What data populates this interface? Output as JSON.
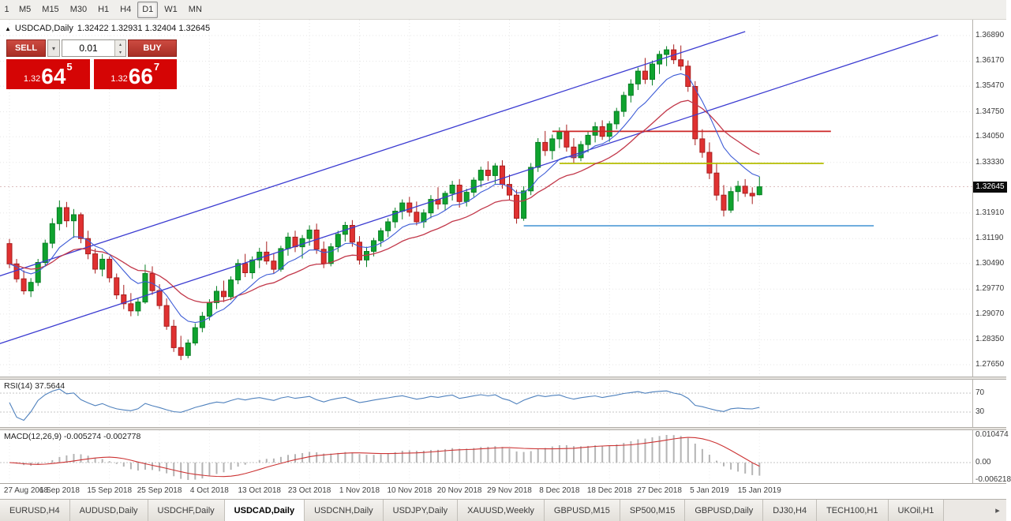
{
  "toolbar": {
    "timeframes": [
      {
        "label": "1"
      },
      {
        "label": "M5"
      },
      {
        "label": "M15"
      },
      {
        "label": "M30"
      },
      {
        "label": "H1"
      },
      {
        "label": "H4"
      },
      {
        "label": "D1",
        "active": true
      },
      {
        "label": "W1"
      },
      {
        "label": "MN"
      }
    ]
  },
  "chart_header": {
    "marker": "▲",
    "symbol": "USDCAD,Daily",
    "ohlc": "1.32422 1.32931 1.32404 1.32645"
  },
  "trade_panel": {
    "sell_label": "SELL",
    "buy_label": "BUY",
    "volume": "0.01",
    "sell_price": {
      "prefix": "1.32",
      "big": "64",
      "sup": "5"
    },
    "buy_price": {
      "prefix": "1.32",
      "big": "66",
      "sup": "7"
    }
  },
  "icons": {
    "dropdown": "▾",
    "spin_up": "▴",
    "spin_down": "▾",
    "tab_scroll_right": "▸"
  },
  "price_axis": {
    "labels": [
      "1.36890",
      "1.36170",
      "1.35470",
      "1.34750",
      "1.34050",
      "1.33330",
      "1.31910",
      "1.31190",
      "1.30490",
      "1.29770",
      "1.29070",
      "1.28350",
      "1.27650"
    ],
    "current": "1.32645"
  },
  "rsi_panel": {
    "label": "RSI(14) 37.5644",
    "axis_labels": [
      "70",
      "30"
    ]
  },
  "macd_panel": {
    "label": "MACD(12,26,9) -0.005274 -0.002778",
    "axis_labels": [
      "0.010474",
      "0.00",
      "-0.006218"
    ]
  },
  "tabs": {
    "items": [
      {
        "label": "EURUSD,H4"
      },
      {
        "label": "AUDUSD,Daily"
      },
      {
        "label": "USDCHF,Daily"
      },
      {
        "label": "USDCAD,Daily",
        "active": true
      },
      {
        "label": "USDCNH,Daily"
      },
      {
        "label": "USDJPY,Daily"
      },
      {
        "label": "XAUUSD,Weekly"
      },
      {
        "label": "GBPUSD,M15"
      },
      {
        "label": "SP500,M15"
      },
      {
        "label": "GBPUSD,Daily"
      },
      {
        "label": "DJ30,H4"
      },
      {
        "label": "TECH100,H1"
      },
      {
        "label": "UKOil,H1"
      }
    ]
  },
  "chart_data": {
    "type": "candlestick",
    "symbol": "USDCAD",
    "timeframe": "Daily",
    "y_range": [
      1.2765,
      1.3689
    ],
    "bars_per_label": 7,
    "dates": [
      "27 Aug 2018",
      "6 Sep 2018",
      "15 Sep 2018",
      "25 Sep 2018",
      "4 Oct 2018",
      "13 Oct 2018",
      "23 Oct 2018",
      "1 Nov 2018",
      "10 Nov 2018",
      "20 Nov 2018",
      "29 Nov 2018",
      "8 Dec 2018",
      "18 Dec 2018",
      "27 Dec 2018",
      "5 Jan 2019",
      "15 Jan 2019"
    ],
    "candles": [
      [
        1.3105,
        1.3118,
        1.3036,
        1.3048
      ],
      [
        1.3048,
        1.3062,
        1.2996,
        1.3006
      ],
      [
        1.3006,
        1.303,
        1.2962,
        1.2972
      ],
      [
        1.2972,
        1.3008,
        1.2955,
        1.2996
      ],
      [
        1.2996,
        1.3062,
        1.2986,
        1.3052
      ],
      [
        1.3052,
        1.3116,
        1.3041,
        1.3106
      ],
      [
        1.3106,
        1.3176,
        1.3092,
        1.3161
      ],
      [
        1.3161,
        1.3226,
        1.3142,
        1.3206
      ],
      [
        1.3206,
        1.3222,
        1.3151,
        1.3169
      ],
      [
        1.3169,
        1.3202,
        1.3121,
        1.3186
      ],
      [
        1.3186,
        1.3192,
        1.3106,
        1.3119
      ],
      [
        1.3119,
        1.3141,
        1.3061,
        1.3076
      ],
      [
        1.3076,
        1.3091,
        1.3021,
        1.3033
      ],
      [
        1.3033,
        1.3076,
        1.3013,
        1.3061
      ],
      [
        1.3061,
        1.3069,
        1.2996,
        1.3009
      ],
      [
        1.3009,
        1.3021,
        1.2949,
        1.2961
      ],
      [
        1.2961,
        1.2989,
        1.2921,
        1.2936
      ],
      [
        1.2936,
        1.2966,
        1.2901,
        1.2916
      ],
      [
        1.2916,
        1.2951,
        1.2902,
        1.2941
      ],
      [
        1.2941,
        1.3046,
        1.2936,
        1.3021
      ],
      [
        1.3021,
        1.3041,
        1.2961,
        1.2973
      ],
      [
        1.2973,
        1.2991,
        1.2921,
        1.2931
      ],
      [
        1.2931,
        1.2951,
        1.2863,
        1.2873
      ],
      [
        1.2873,
        1.2891,
        1.2801,
        1.2813
      ],
      [
        1.2813,
        1.2846,
        1.2778,
        1.2791
      ],
      [
        1.2791,
        1.2836,
        1.2783,
        1.2826
      ],
      [
        1.2826,
        1.2881,
        1.2819,
        1.2869
      ],
      [
        1.2869,
        1.2913,
        1.2856,
        1.2901
      ],
      [
        1.2901,
        1.2949,
        1.2889,
        1.2939
      ],
      [
        1.2939,
        1.2986,
        1.2921,
        1.2971
      ],
      [
        1.2971,
        1.3001,
        1.2941,
        1.2956
      ],
      [
        1.2956,
        1.3013,
        1.2946,
        1.3003
      ],
      [
        1.3003,
        1.3061,
        1.2991,
        1.3049
      ],
      [
        1.3049,
        1.3076,
        1.3011,
        1.3023
      ],
      [
        1.3023,
        1.3069,
        1.3006,
        1.3059
      ],
      [
        1.3059,
        1.3093,
        1.3036,
        1.3081
      ],
      [
        1.3081,
        1.3111,
        1.3046,
        1.3056
      ],
      [
        1.3056,
        1.3076,
        1.3021,
        1.3033
      ],
      [
        1.3033,
        1.3099,
        1.3026,
        1.3091
      ],
      [
        1.3091,
        1.3136,
        1.3071,
        1.3123
      ],
      [
        1.3123,
        1.3141,
        1.3081,
        1.3096
      ],
      [
        1.3096,
        1.3129,
        1.3063,
        1.3119
      ],
      [
        1.3119,
        1.3156,
        1.3099,
        1.3143
      ],
      [
        1.3143,
        1.3161,
        1.3076,
        1.3089
      ],
      [
        1.3089,
        1.3111,
        1.3036,
        1.3049
      ],
      [
        1.3049,
        1.3106,
        1.3041,
        1.3096
      ],
      [
        1.3096,
        1.3141,
        1.3081,
        1.3131
      ],
      [
        1.3131,
        1.3166,
        1.3111,
        1.3156
      ],
      [
        1.3156,
        1.3171,
        1.3096,
        1.3109
      ],
      [
        1.3109,
        1.3126,
        1.3046,
        1.3059
      ],
      [
        1.3059,
        1.3096,
        1.3039,
        1.3083
      ],
      [
        1.3083,
        1.3121,
        1.3069,
        1.3113
      ],
      [
        1.3113,
        1.3149,
        1.3096,
        1.3141
      ],
      [
        1.3141,
        1.3176,
        1.3123,
        1.3166
      ],
      [
        1.3166,
        1.3206,
        1.3149,
        1.3196
      ],
      [
        1.3196,
        1.3229,
        1.3173,
        1.3219
      ],
      [
        1.3219,
        1.3236,
        1.3181,
        1.3193
      ],
      [
        1.3193,
        1.3223,
        1.3156,
        1.3166
      ],
      [
        1.3166,
        1.3201,
        1.3149,
        1.3191
      ],
      [
        1.3191,
        1.3241,
        1.3176,
        1.3229
      ],
      [
        1.3229,
        1.3263,
        1.3201,
        1.3216
      ],
      [
        1.3216,
        1.3253,
        1.3199,
        1.3246
      ],
      [
        1.3246,
        1.3281,
        1.3226,
        1.3269
      ],
      [
        1.3269,
        1.3286,
        1.3206,
        1.3223
      ],
      [
        1.3223,
        1.3259,
        1.3209,
        1.3249
      ],
      [
        1.3249,
        1.3291,
        1.3236,
        1.3283
      ],
      [
        1.3283,
        1.3321,
        1.3263,
        1.3311
      ],
      [
        1.3311,
        1.3336,
        1.3281,
        1.3296
      ],
      [
        1.3296,
        1.3331,
        1.3273,
        1.3323
      ],
      [
        1.3323,
        1.3339,
        1.3259,
        1.3271
      ],
      [
        1.3271,
        1.3299,
        1.3226,
        1.3241
      ],
      [
        1.3241,
        1.3256,
        1.3161,
        1.3176
      ],
      [
        1.3176,
        1.3266,
        1.3169,
        1.3253
      ],
      [
        1.3253,
        1.3331,
        1.3241,
        1.3319
      ],
      [
        1.3319,
        1.3401,
        1.3306,
        1.3389
      ],
      [
        1.3389,
        1.3421,
        1.3351,
        1.3366
      ],
      [
        1.3366,
        1.3411,
        1.3341,
        1.3399
      ],
      [
        1.3399,
        1.3431,
        1.3373,
        1.3419
      ],
      [
        1.3419,
        1.3439,
        1.3363,
        1.3376
      ],
      [
        1.3376,
        1.3401,
        1.3331,
        1.3346
      ],
      [
        1.3346,
        1.3393,
        1.3336,
        1.3383
      ],
      [
        1.3383,
        1.3421,
        1.3361,
        1.3409
      ],
      [
        1.3409,
        1.3446,
        1.3389,
        1.3433
      ],
      [
        1.3433,
        1.3451,
        1.3396,
        1.3406
      ],
      [
        1.3406,
        1.3449,
        1.3391,
        1.3441
      ],
      [
        1.3441,
        1.3486,
        1.3426,
        1.3476
      ],
      [
        1.3476,
        1.3531,
        1.3461,
        1.3521
      ],
      [
        1.3521,
        1.3566,
        1.3501,
        1.3553
      ],
      [
        1.3553,
        1.3599,
        1.3536,
        1.3589
      ],
      [
        1.3589,
        1.3626,
        1.3553,
        1.3566
      ],
      [
        1.3566,
        1.3619,
        1.3549,
        1.3609
      ],
      [
        1.3609,
        1.3646,
        1.3581,
        1.3636
      ],
      [
        1.3636,
        1.3659,
        1.3603,
        1.3649
      ],
      [
        1.3649,
        1.3664,
        1.3609,
        1.3621
      ],
      [
        1.3621,
        1.3661,
        1.3591,
        1.3603
      ],
      [
        1.3603,
        1.3619,
        1.3531,
        1.3546
      ],
      [
        1.3546,
        1.3561,
        1.3381,
        1.3399
      ],
      [
        1.3399,
        1.3426,
        1.3346,
        1.3361
      ],
      [
        1.3361,
        1.3389,
        1.3286,
        1.3303
      ],
      [
        1.3303,
        1.3331,
        1.3226,
        1.3241
      ],
      [
        1.3241,
        1.3269,
        1.3181,
        1.3199
      ],
      [
        1.3199,
        1.3263,
        1.3191,
        1.3251
      ],
      [
        1.3251,
        1.3281,
        1.3223,
        1.3266
      ],
      [
        1.3266,
        1.3286,
        1.3236,
        1.3246
      ],
      [
        1.3246,
        1.3263,
        1.3216,
        1.3239
      ],
      [
        1.32422,
        1.32931,
        1.32404,
        1.32645
      ]
    ],
    "overlays": {
      "ma_fast": {
        "type": "EMA",
        "period": 9,
        "color": "#3c5bd6"
      },
      "ma_slow": {
        "type": "EMA",
        "period": 20,
        "color": "#c2384a"
      },
      "channel_lines": [
        {
          "from_bar": -2,
          "from_price": 1.282,
          "to_bar": 130,
          "to_price": 1.369,
          "color": "#3b3bd1"
        },
        {
          "from_bar": -2,
          "from_price": 1.301,
          "to_bar": 103,
          "to_price": 1.37,
          "color": "#3b3bd1"
        }
      ],
      "hlines": [
        {
          "price": 1.342,
          "from_bar": 76,
          "to_bar": 115,
          "color": "#cc2525"
        },
        {
          "price": 1.333,
          "from_bar": 77,
          "to_bar": 114,
          "color": "#b5bd00"
        },
        {
          "price": 1.3155,
          "from_bar": 72,
          "to_bar": 121,
          "color": "#5ba3d9"
        }
      ],
      "bid_line": 1.32645
    },
    "indicators": {
      "rsi": {
        "period": 14,
        "current": 37.5644,
        "levels": [
          70,
          30
        ],
        "color": "#4f81bd"
      },
      "macd": {
        "fast": 12,
        "slow": 26,
        "signal": 9,
        "current_main": -0.005274,
        "current_signal": -0.002778,
        "scale_max": 0.010474,
        "scale_min": -0.006218,
        "histogram_color": "#b4b4b4",
        "signal_color": "#cc3333"
      }
    }
  }
}
